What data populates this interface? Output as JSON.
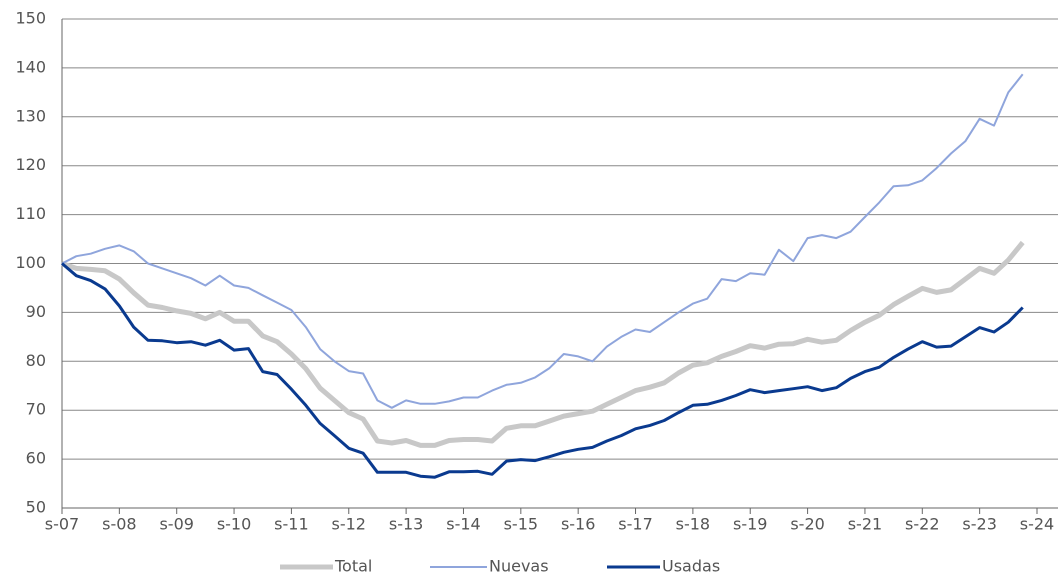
{
  "chart_data": {
    "type": "line",
    "categories": [
      "s-07",
      null,
      null,
      null,
      "s-08",
      null,
      null,
      null,
      "s-09",
      null,
      null,
      null,
      "s-10",
      null,
      null,
      null,
      "s-11",
      null,
      null,
      null,
      "s-12",
      null,
      null,
      null,
      "s-13",
      null,
      null,
      null,
      "s-14",
      null,
      null,
      null,
      "s-15",
      null,
      null,
      null,
      "s-16",
      null,
      null,
      null,
      "s-17",
      null,
      null,
      null,
      "s-18",
      null,
      null,
      null,
      "s-19",
      null,
      null,
      null,
      "s-20",
      null,
      null,
      null,
      "s-21",
      null,
      null,
      null,
      "s-22",
      null,
      null,
      null,
      "s-23",
      null,
      null,
      null,
      "s-24"
    ],
    "series": [
      {
        "name": "Total",
        "color": "#c8c8c8",
        "values": [
          100,
          99,
          98.8,
          98.5,
          96.8,
          94,
          91.5,
          91,
          90.3,
          89.8,
          88.7,
          90,
          88.2,
          88.2,
          85.2,
          84,
          81.5,
          78.5,
          74.5,
          72,
          69.5,
          68.2,
          63.7,
          63.3,
          63.8,
          62.8,
          62.8,
          63.8,
          64,
          64,
          63.7,
          66.3,
          66.8,
          66.8,
          67.8,
          68.8,
          69.3,
          69.8,
          71.2,
          72.6,
          74,
          74.7,
          75.6,
          77.6,
          79.2,
          79.7,
          81,
          82,
          83.2,
          82.7,
          83.5,
          83.6,
          84.5,
          83.9,
          84.3,
          86.3,
          88,
          89.4,
          91.6,
          93.3,
          94.9,
          94.1,
          94.6,
          96.8,
          99,
          98,
          100.7,
          104.3,
          null
        ]
      },
      {
        "name": "Nuevas",
        "color": "#8fa5dc",
        "values": [
          100,
          101.5,
          102,
          103,
          103.7,
          102.5,
          100,
          99,
          98,
          97,
          95.5,
          97.5,
          95.5,
          95,
          93.5,
          92,
          90.5,
          87,
          82.5,
          80,
          78,
          77.5,
          72,
          70.5,
          72,
          71.3,
          71.3,
          71.8,
          72.6,
          72.6,
          74,
          75.2,
          75.6,
          76.7,
          78.6,
          81.5,
          81,
          80,
          83,
          85,
          86.5,
          86,
          88,
          90,
          91.8,
          92.8,
          96.8,
          96.4,
          98,
          97.7,
          102.8,
          100.5,
          105.2,
          105.8,
          105.2,
          106.5,
          109.5,
          112.5,
          115.8,
          116,
          117,
          119.5,
          122.5,
          125,
          129.6,
          128.2,
          135,
          138.7,
          null
        ]
      },
      {
        "name": "Usadas",
        "color": "#0a3a8f",
        "values": [
          100,
          97.5,
          96.5,
          94.8,
          91.3,
          87,
          84.3,
          84.2,
          83.8,
          84,
          83.3,
          84.3,
          82.3,
          82.6,
          77.9,
          77.3,
          74.3,
          71,
          67.3,
          64.8,
          62.2,
          61.2,
          57.3,
          57.3,
          57.3,
          56.5,
          56.3,
          57.4,
          57.4,
          57.5,
          56.9,
          59.6,
          59.9,
          59.7,
          60.5,
          61.4,
          62,
          62.4,
          63.7,
          64.8,
          66.2,
          66.9,
          67.9,
          69.5,
          71,
          71.2,
          72,
          73,
          74.2,
          73.6,
          74,
          74.4,
          74.8,
          74,
          74.6,
          76.5,
          77.9,
          78.8,
          80.8,
          82.5,
          84,
          82.9,
          83.1,
          85,
          86.9,
          86,
          88,
          91,
          null
        ]
      }
    ],
    "ylim": [
      50,
      150
    ],
    "yticks": [
      50,
      60,
      70,
      80,
      90,
      100,
      110,
      120,
      130,
      140,
      150
    ],
    "grid": true
  }
}
